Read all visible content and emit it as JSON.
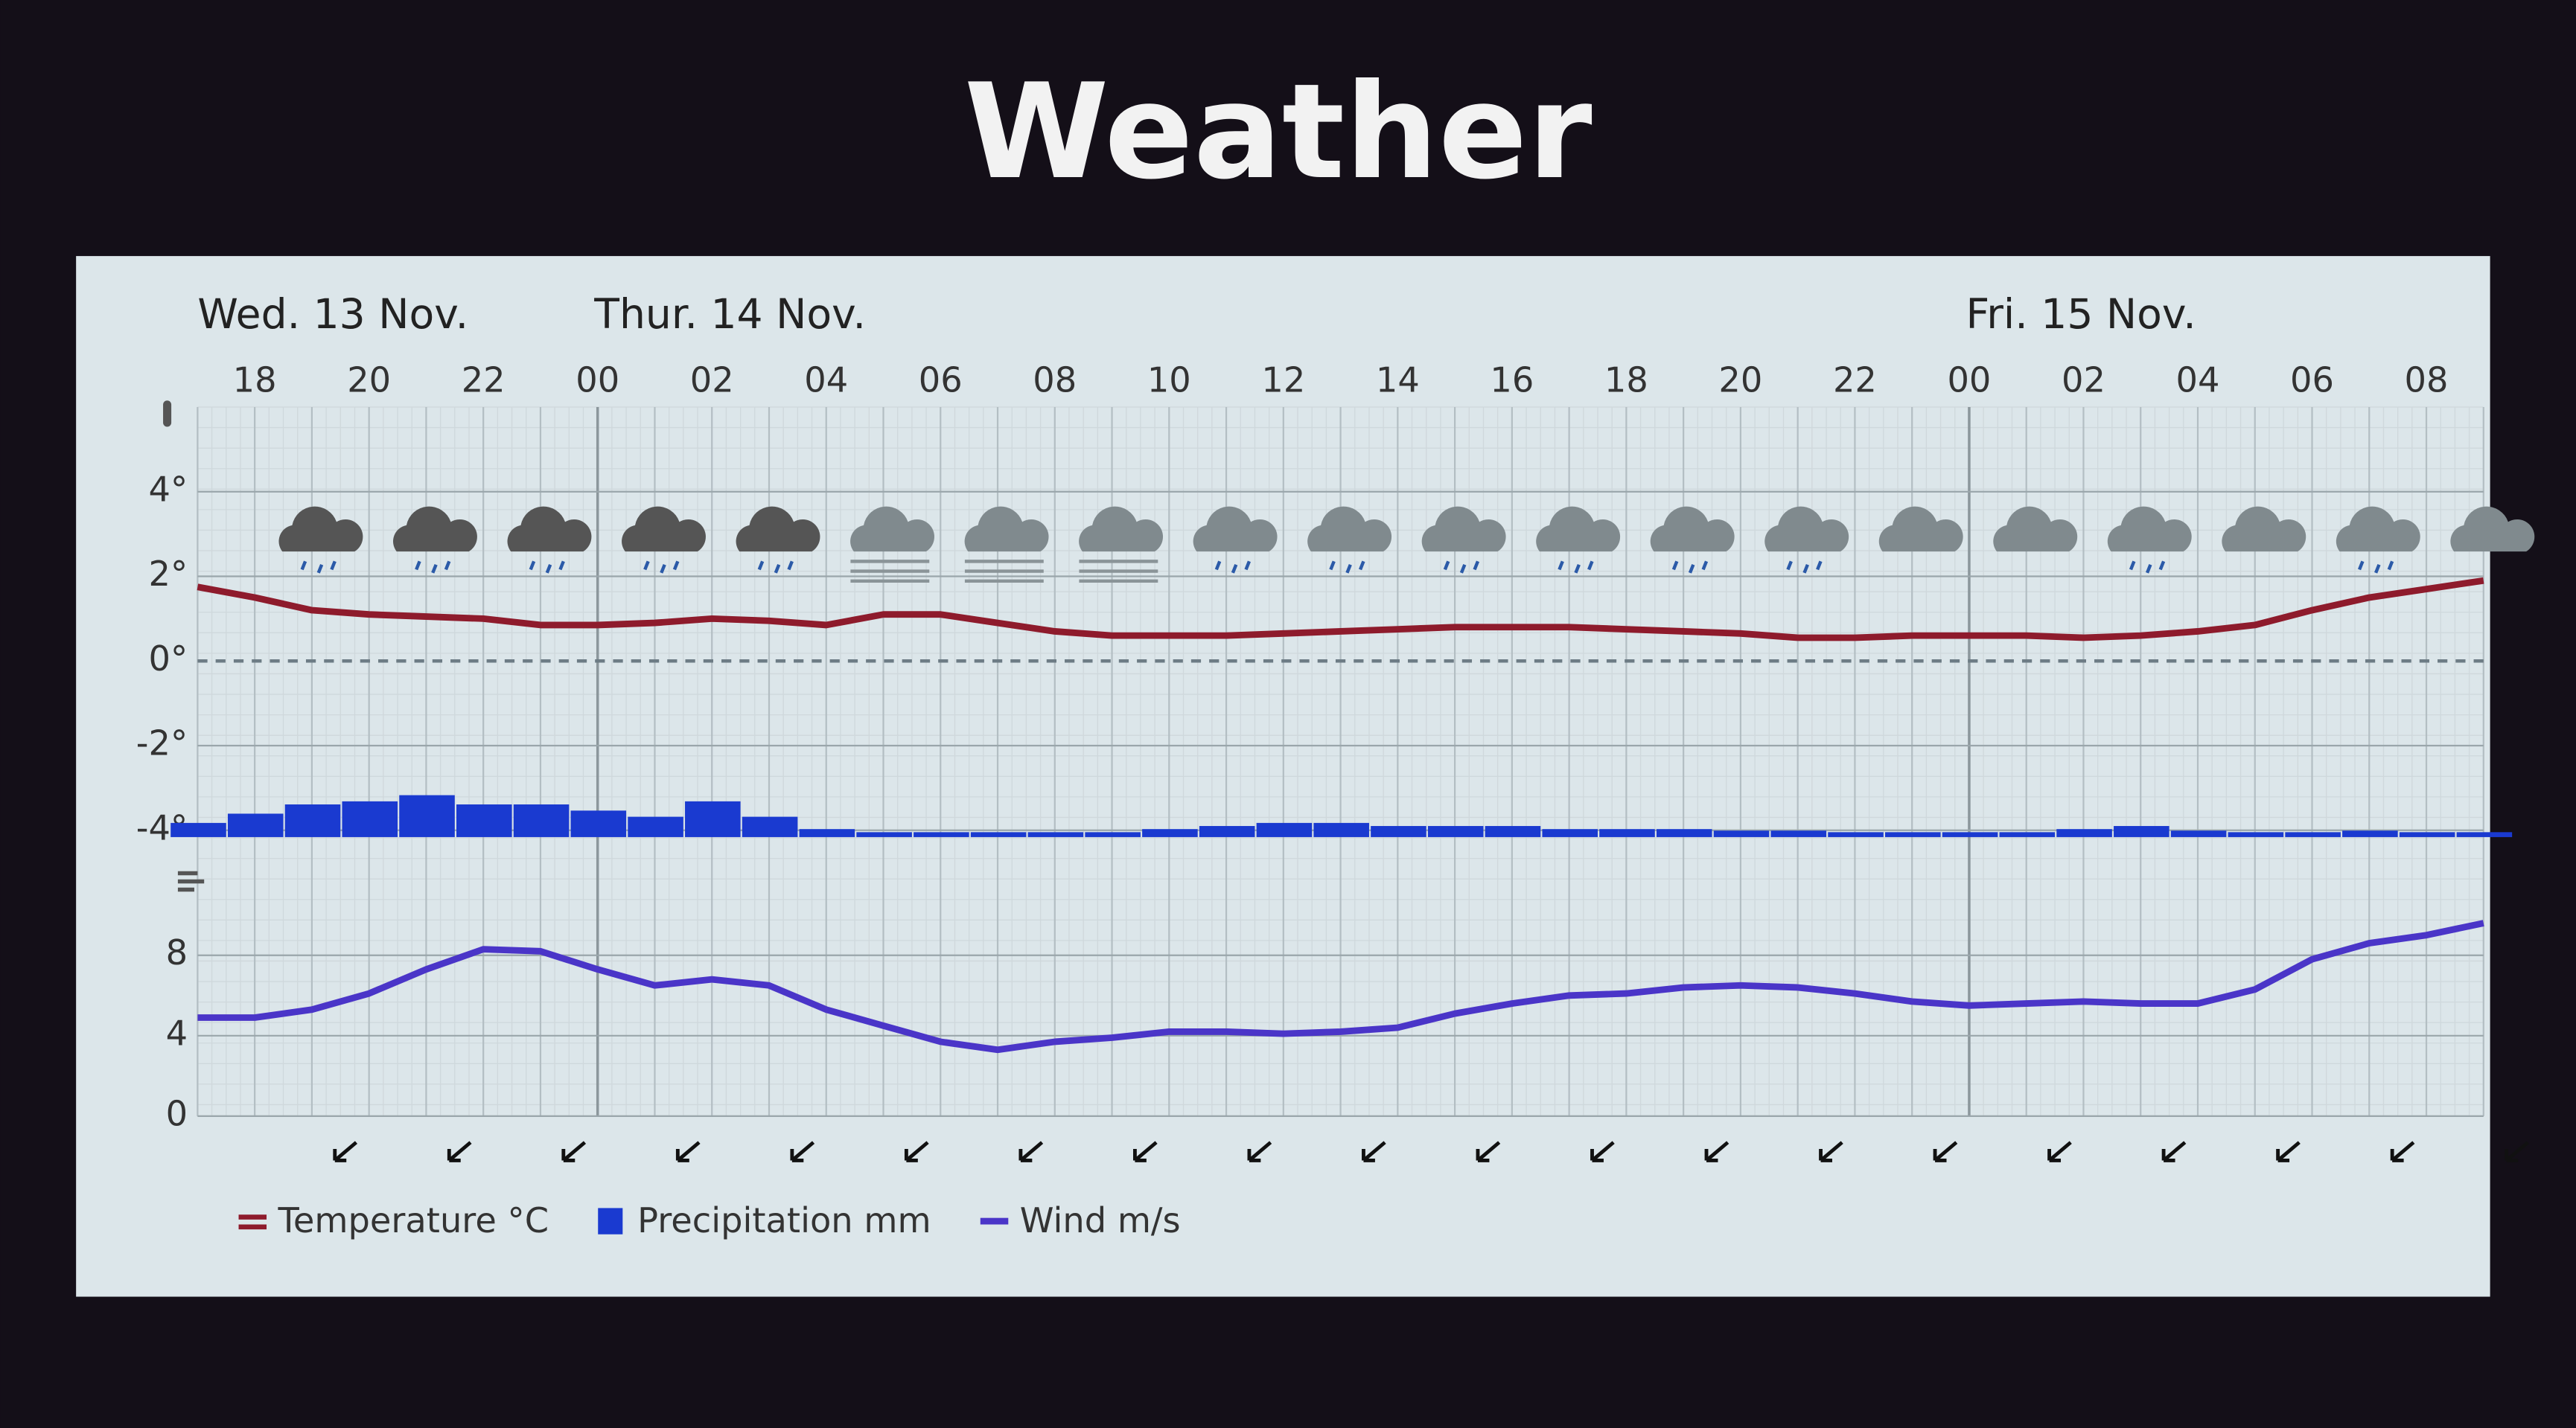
{
  "title": "Weather",
  "chart_data": [
    {
      "type": "combo",
      "day_labels": [
        "Wed. 13 Nov.",
        "Thur. 14 Nov.",
        "Fri. 15 Nov."
      ],
      "categories": [
        null,
        "18",
        null,
        "20",
        null,
        "22",
        null,
        "00",
        null,
        "02",
        null,
        "04",
        null,
        "06",
        null,
        "08",
        null,
        "10",
        null,
        "12",
        null,
        "14",
        null,
        "16",
        null,
        "18",
        null,
        "20",
        null,
        "22",
        null,
        "00",
        null,
        "02",
        null,
        "04",
        null,
        "06",
        null,
        "08",
        null
      ],
      "ylim": [
        -4.2,
        6
      ],
      "yticks": [
        {
          "value": -4,
          "label": "-4°"
        },
        {
          "value": -2,
          "label": "-2°"
        },
        {
          "value": 0,
          "label": "0°"
        },
        {
          "value": 2,
          "label": "2°"
        },
        {
          "value": 4,
          "label": "4°"
        }
      ],
      "y2lim": [
        0,
        14
      ],
      "series": [
        {
          "name": "Temperature °C",
          "type": "line",
          "color": "#8e1b2c",
          "values": [
            1.75,
            1.5,
            1.2,
            1.1,
            1.05,
            1.0,
            0.85,
            0.85,
            0.9,
            1.0,
            0.95,
            0.85,
            1.1,
            1.1,
            0.9,
            0.7,
            0.6,
            0.6,
            0.6,
            0.65,
            0.7,
            0.75,
            0.8,
            0.8,
            0.8,
            0.75,
            0.7,
            0.65,
            0.55,
            0.55,
            0.6,
            0.6,
            0.6,
            0.55,
            0.6,
            0.7,
            0.85,
            1.2,
            1.5,
            1.7,
            1.9
          ]
        },
        {
          "name": "Precipitation mm",
          "type": "bar",
          "axis": "y2",
          "color": "#1a3ad0",
          "values": [
            0.3,
            0.6,
            0.9,
            1.0,
            1.2,
            0.9,
            0.9,
            0.7,
            0.5,
            1.0,
            0.5,
            0.1,
            0,
            0,
            0,
            0,
            0,
            0.1,
            0.2,
            0.3,
            0.3,
            0.2,
            0.2,
            0.2,
            0.1,
            0.1,
            0.1,
            0.05,
            0.05,
            0,
            0,
            0,
            0,
            0.1,
            0.2,
            0.05,
            0,
            0,
            0.05,
            0,
            0
          ]
        }
      ]
    },
    {
      "type": "line",
      "ylim": [
        0,
        12
      ],
      "yticks": [
        0,
        4,
        8
      ],
      "series": [
        {
          "name": "Wind m/s",
          "type": "line",
          "color": "#4a35c8",
          "values": [
            4.9,
            4.9,
            5.3,
            6.1,
            7.3,
            8.3,
            8.2,
            7.3,
            6.5,
            6.8,
            6.5,
            5.3,
            4.5,
            3.7,
            3.3,
            3.7,
            3.9,
            4.2,
            4.2,
            4.1,
            4.2,
            4.4,
            5.1,
            5.6,
            6.0,
            6.1,
            6.4,
            6.5,
            6.4,
            6.1,
            5.7,
            5.5,
            5.6,
            5.7,
            5.6,
            5.6,
            6.3,
            7.8,
            8.6,
            9.0,
            9.6
          ]
        }
      ]
    }
  ]
}
